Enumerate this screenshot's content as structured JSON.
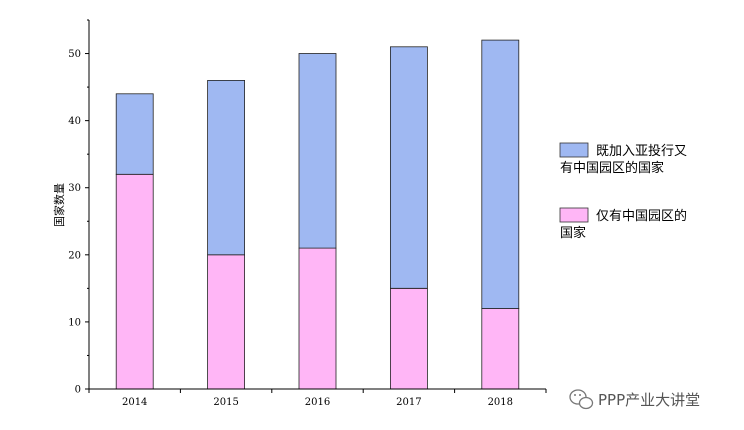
{
  "chart_data": {
    "type": "bar",
    "stacked": true,
    "categories": [
      "2014",
      "2015",
      "2016",
      "2017",
      "2018"
    ],
    "series": [
      {
        "name": "仅有中国园区的国家",
        "name_lines": [
          "仅有中国园区的",
          "国家"
        ],
        "values": [
          32,
          20,
          21,
          15,
          12
        ],
        "color": "#ffb6f6"
      },
      {
        "name": "既加入亚投行又有中国园区的国家",
        "name_lines": [
          "既加入亚投行又",
          "有中国园区的国家"
        ],
        "values": [
          12,
          26,
          29,
          36,
          40
        ],
        "color": "#9fb8f2"
      }
    ],
    "ylabel": "国家数量",
    "ylim": [
      0,
      55
    ],
    "yticks": [
      0,
      10,
      20,
      30,
      40,
      50
    ],
    "grid": false,
    "legend_position": "right"
  },
  "watermark": {
    "text": "PPP产业大讲堂",
    "icon": "wechat-icon"
  }
}
